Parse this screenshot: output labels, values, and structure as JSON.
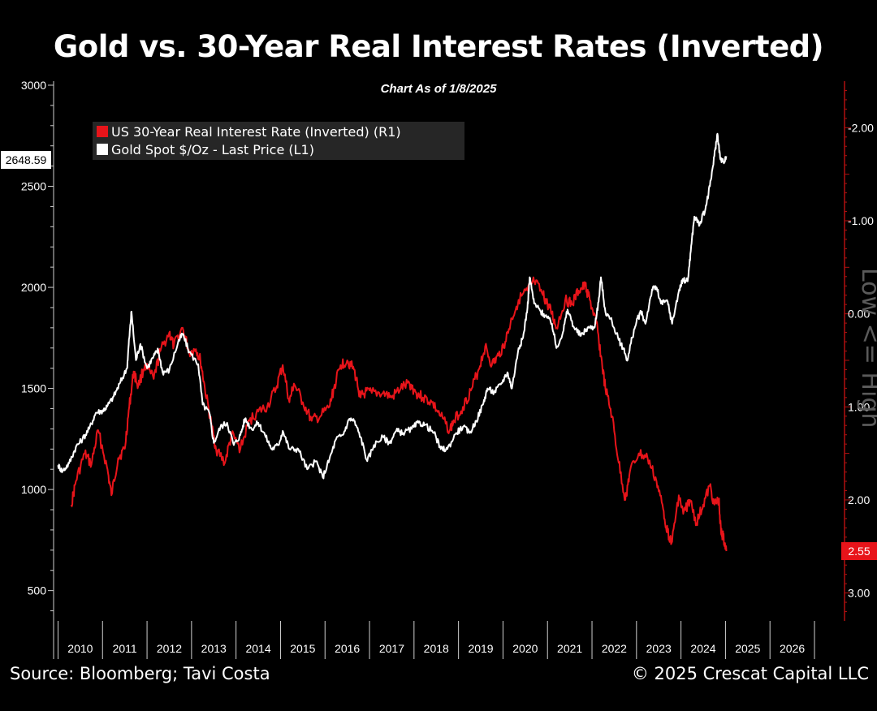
{
  "header": {
    "title": "Gold vs. 30-Year Real Interest Rates (Inverted)",
    "subtitle": "Chart As of 1/8/2025"
  },
  "footer": {
    "source": "Source: Bloomberg; Tavi Costa",
    "copyright": "© 2025 Crescat Capital LLC"
  },
  "colors": {
    "background": "#000000",
    "gold_series": "#ffffff",
    "rate_series": "#e8141a",
    "right_axis": "#b01010",
    "legend_bg": "#262626"
  },
  "chart_data": {
    "type": "line",
    "title": "Gold vs. 30-Year Real Interest Rates (Inverted)",
    "legend_placement": "top-left",
    "grid": false,
    "x_axis": {
      "range": [
        2009.9,
        2027.0
      ],
      "tick_labels": [
        "2010",
        "2011",
        "2012",
        "2013",
        "2014",
        "2015",
        "2016",
        "2017",
        "2018",
        "2019",
        "2020",
        "2021",
        "2022",
        "2023",
        "2024",
        "2025",
        "2026"
      ]
    },
    "y_left": {
      "range": [
        350,
        3020
      ],
      "ticks": [
        500,
        1000,
        1500,
        2000,
        2500,
        3000
      ],
      "tick_labels": [
        "500",
        "1000",
        "1500",
        "2000",
        "2500",
        "3000"
      ]
    },
    "y_right": {
      "inverted": true,
      "range": [
        -2.5,
        3.3
      ],
      "ticks": [
        -2.0,
        -1.0,
        0.0,
        1.0,
        2.0,
        3.0
      ],
      "tick_labels": [
        "-2.00",
        "-1.00",
        "0.00",
        "1.00",
        "2.00",
        "3.00"
      ],
      "annotation": "Low <= High"
    },
    "last_values": {
      "gold": "2648.59",
      "rate": "2.55"
    },
    "series": [
      {
        "name": "US 30-Year Real Interest Rate (Inverted) (R1)",
        "axis": "right",
        "color": "#e8141a",
        "points": [
          [
            2010.3,
            2.05
          ],
          [
            2010.4,
            1.8
          ],
          [
            2010.6,
            1.5
          ],
          [
            2010.75,
            1.62
          ],
          [
            2010.9,
            1.25
          ],
          [
            2011.1,
            1.65
          ],
          [
            2011.2,
            1.95
          ],
          [
            2011.35,
            1.55
          ],
          [
            2011.5,
            1.45
          ],
          [
            2011.6,
            1.0
          ],
          [
            2011.7,
            0.62
          ],
          [
            2011.8,
            0.78
          ],
          [
            2011.95,
            0.55
          ],
          [
            2012.15,
            0.7
          ],
          [
            2012.3,
            0.4
          ],
          [
            2012.5,
            0.2
          ],
          [
            2012.6,
            0.35
          ],
          [
            2012.8,
            0.15
          ],
          [
            2012.95,
            0.42
          ],
          [
            2013.1,
            0.38
          ],
          [
            2013.2,
            0.5
          ],
          [
            2013.3,
            0.8
          ],
          [
            2013.45,
            1.2
          ],
          [
            2013.55,
            1.45
          ],
          [
            2013.75,
            1.6
          ],
          [
            2013.9,
            1.3
          ],
          [
            2014.1,
            1.45
          ],
          [
            2014.3,
            1.15
          ],
          [
            2014.5,
            1.05
          ],
          [
            2014.7,
            1.0
          ],
          [
            2014.9,
            0.8
          ],
          [
            2015.05,
            0.55
          ],
          [
            2015.2,
            0.95
          ],
          [
            2015.3,
            0.75
          ],
          [
            2015.5,
            0.95
          ],
          [
            2015.7,
            1.15
          ],
          [
            2015.9,
            1.1
          ],
          [
            2016.1,
            1.0
          ],
          [
            2016.2,
            0.8
          ],
          [
            2016.35,
            0.55
          ],
          [
            2016.5,
            0.5
          ],
          [
            2016.65,
            0.6
          ],
          [
            2016.8,
            0.9
          ],
          [
            2016.9,
            0.85
          ],
          [
            2017.05,
            0.85
          ],
          [
            2017.3,
            0.85
          ],
          [
            2017.5,
            0.9
          ],
          [
            2017.7,
            0.8
          ],
          [
            2017.9,
            0.75
          ],
          [
            2018.05,
            0.85
          ],
          [
            2018.2,
            0.9
          ],
          [
            2018.4,
            0.95
          ],
          [
            2018.6,
            1.1
          ],
          [
            2018.8,
            1.25
          ],
          [
            2018.9,
            1.15
          ],
          [
            2019.1,
            1.0
          ],
          [
            2019.3,
            0.8
          ],
          [
            2019.45,
            0.6
          ],
          [
            2019.6,
            0.35
          ],
          [
            2019.75,
            0.55
          ],
          [
            2019.9,
            0.45
          ],
          [
            2020.05,
            0.3
          ],
          [
            2020.2,
            0.05
          ],
          [
            2020.35,
            -0.15
          ],
          [
            2020.55,
            -0.25
          ],
          [
            2020.7,
            -0.35
          ],
          [
            2020.9,
            -0.2
          ],
          [
            2021.0,
            -0.1
          ],
          [
            2021.1,
            0.0
          ],
          [
            2021.2,
            0.15
          ],
          [
            2021.4,
            -0.15
          ],
          [
            2021.55,
            -0.1
          ],
          [
            2021.7,
            -0.25
          ],
          [
            2021.85,
            -0.3
          ],
          [
            2021.95,
            -0.15
          ],
          [
            2022.1,
            0.1
          ],
          [
            2022.2,
            0.45
          ],
          [
            2022.3,
            0.8
          ],
          [
            2022.45,
            1.1
          ],
          [
            2022.6,
            1.6
          ],
          [
            2022.75,
            2.0
          ],
          [
            2022.85,
            1.7
          ],
          [
            2023.05,
            1.5
          ],
          [
            2023.25,
            1.55
          ],
          [
            2023.45,
            1.8
          ],
          [
            2023.6,
            2.1
          ],
          [
            2023.7,
            2.35
          ],
          [
            2023.8,
            2.45
          ],
          [
            2023.95,
            1.95
          ],
          [
            2024.05,
            2.15
          ],
          [
            2024.2,
            2.0
          ],
          [
            2024.35,
            2.25
          ],
          [
            2024.5,
            2.05
          ],
          [
            2024.65,
            1.85
          ],
          [
            2024.75,
            2.05
          ],
          [
            2024.85,
            2.0
          ],
          [
            2024.9,
            2.35
          ],
          [
            2024.95,
            2.4
          ],
          [
            2025.02,
            2.55
          ]
        ]
      },
      {
        "name": "Gold Spot $/Oz - Last Price (L1)",
        "axis": "left",
        "color": "#ffffff",
        "points": [
          [
            2010.0,
            1120
          ],
          [
            2010.1,
            1090
          ],
          [
            2010.25,
            1130
          ],
          [
            2010.4,
            1210
          ],
          [
            2010.55,
            1250
          ],
          [
            2010.7,
            1300
          ],
          [
            2010.85,
            1380
          ],
          [
            2011.0,
            1390
          ],
          [
            2011.1,
            1410
          ],
          [
            2011.25,
            1460
          ],
          [
            2011.4,
            1530
          ],
          [
            2011.55,
            1600
          ],
          [
            2011.6,
            1750
          ],
          [
            2011.65,
            1880
          ],
          [
            2011.75,
            1640
          ],
          [
            2011.85,
            1720
          ],
          [
            2012.0,
            1600
          ],
          [
            2012.15,
            1660
          ],
          [
            2012.25,
            1690
          ],
          [
            2012.35,
            1580
          ],
          [
            2012.5,
            1590
          ],
          [
            2012.7,
            1730
          ],
          [
            2012.8,
            1770
          ],
          [
            2012.95,
            1680
          ],
          [
            2013.15,
            1620
          ],
          [
            2013.25,
            1420
          ],
          [
            2013.4,
            1380
          ],
          [
            2013.5,
            1230
          ],
          [
            2013.65,
            1310
          ],
          [
            2013.8,
            1330
          ],
          [
            2013.95,
            1220
          ],
          [
            2014.1,
            1270
          ],
          [
            2014.2,
            1350
          ],
          [
            2014.35,
            1300
          ],
          [
            2014.5,
            1330
          ],
          [
            2014.65,
            1270
          ],
          [
            2014.8,
            1200
          ],
          [
            2014.95,
            1220
          ],
          [
            2015.05,
            1290
          ],
          [
            2015.2,
            1200
          ],
          [
            2015.4,
            1200
          ],
          [
            2015.6,
            1100
          ],
          [
            2015.8,
            1140
          ],
          [
            2015.95,
            1060
          ],
          [
            2016.1,
            1150
          ],
          [
            2016.25,
            1250
          ],
          [
            2016.4,
            1270
          ],
          [
            2016.55,
            1350
          ],
          [
            2016.65,
            1340
          ],
          [
            2016.8,
            1260
          ],
          [
            2016.95,
            1140
          ],
          [
            2017.1,
            1220
          ],
          [
            2017.3,
            1260
          ],
          [
            2017.45,
            1230
          ],
          [
            2017.6,
            1290
          ],
          [
            2017.75,
            1280
          ],
          [
            2017.95,
            1300
          ],
          [
            2018.1,
            1330
          ],
          [
            2018.25,
            1320
          ],
          [
            2018.45,
            1280
          ],
          [
            2018.6,
            1200
          ],
          [
            2018.75,
            1200
          ],
          [
            2018.95,
            1280
          ],
          [
            2019.1,
            1310
          ],
          [
            2019.25,
            1280
          ],
          [
            2019.4,
            1340
          ],
          [
            2019.55,
            1420
          ],
          [
            2019.65,
            1500
          ],
          [
            2019.8,
            1480
          ],
          [
            2019.95,
            1520
          ],
          [
            2020.1,
            1580
          ],
          [
            2020.2,
            1500
          ],
          [
            2020.35,
            1700
          ],
          [
            2020.45,
            1750
          ],
          [
            2020.55,
            1900
          ],
          [
            2020.6,
            2050
          ],
          [
            2020.7,
            1920
          ],
          [
            2020.85,
            1880
          ],
          [
            2020.95,
            1860
          ],
          [
            2021.1,
            1820
          ],
          [
            2021.2,
            1700
          ],
          [
            2021.35,
            1780
          ],
          [
            2021.45,
            1890
          ],
          [
            2021.6,
            1800
          ],
          [
            2021.75,
            1760
          ],
          [
            2021.9,
            1800
          ],
          [
            2022.05,
            1800
          ],
          [
            2022.15,
            1930
          ],
          [
            2022.2,
            2050
          ],
          [
            2022.3,
            1880
          ],
          [
            2022.45,
            1830
          ],
          [
            2022.6,
            1740
          ],
          [
            2022.7,
            1700
          ],
          [
            2022.8,
            1640
          ],
          [
            2022.9,
            1750
          ],
          [
            2023.0,
            1830
          ],
          [
            2023.1,
            1880
          ],
          [
            2023.2,
            1820
          ],
          [
            2023.35,
            1990
          ],
          [
            2023.45,
            2000
          ],
          [
            2023.55,
            1920
          ],
          [
            2023.7,
            1930
          ],
          [
            2023.8,
            1820
          ],
          [
            2023.95,
            1980
          ],
          [
            2024.05,
            2040
          ],
          [
            2024.15,
            2030
          ],
          [
            2024.22,
            2180
          ],
          [
            2024.3,
            2350
          ],
          [
            2024.42,
            2310
          ],
          [
            2024.55,
            2390
          ],
          [
            2024.65,
            2500
          ],
          [
            2024.75,
            2650
          ],
          [
            2024.82,
            2760
          ],
          [
            2024.88,
            2640
          ],
          [
            2024.95,
            2620
          ],
          [
            2025.02,
            2648.59
          ]
        ]
      }
    ]
  }
}
